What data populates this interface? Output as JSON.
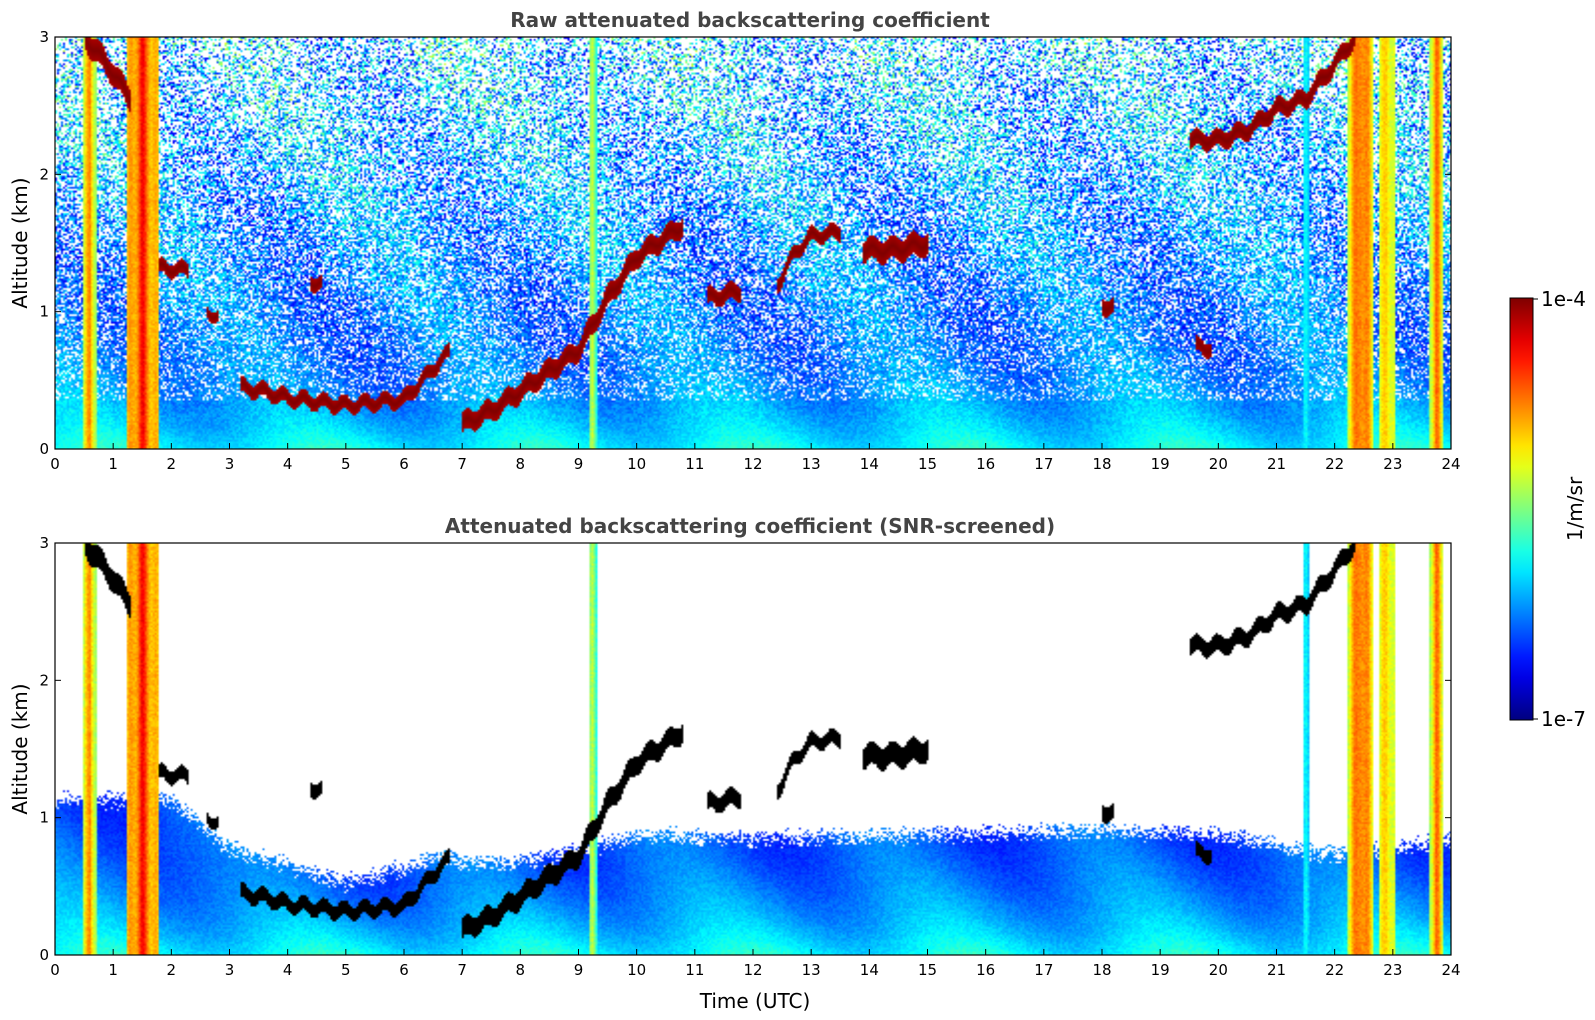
{
  "chart_data": [
    {
      "type": "heatmap",
      "title": "Raw attenuated backscattering coefficient",
      "xlabel": "",
      "ylabel": "Altitude (km)",
      "xlim": [
        0,
        24
      ],
      "ylim": [
        0,
        3
      ],
      "x_ticks": [
        "0",
        "1",
        "2",
        "3",
        "4",
        "5",
        "6",
        "7",
        "8",
        "9",
        "10",
        "11",
        "12",
        "13",
        "14",
        "15",
        "16",
        "17",
        "18",
        "19",
        "20",
        "21",
        "22",
        "23",
        "24"
      ],
      "y_ticks": [
        "0",
        "1",
        "2",
        "3"
      ],
      "screened": false
    },
    {
      "type": "heatmap",
      "title": "Attenuated backscattering coefficient (SNR-screened)",
      "xlabel": "Time (UTC)",
      "ylabel": "Altitude (km)",
      "xlim": [
        0,
        24
      ],
      "ylim": [
        0,
        3
      ],
      "x_ticks": [
        "0",
        "1",
        "2",
        "3",
        "4",
        "5",
        "6",
        "7",
        "8",
        "9",
        "10",
        "11",
        "12",
        "13",
        "14",
        "15",
        "16",
        "17",
        "18",
        "19",
        "20",
        "21",
        "22",
        "23",
        "24"
      ],
      "y_ticks": [
        "0",
        "1",
        "2",
        "3"
      ],
      "screened": true
    }
  ],
  "colorbar": {
    "label": "1/m/sr",
    "max_label": "1e-4",
    "min_label": "1e-7",
    "scale": "log",
    "colormap": "jet"
  },
  "features": {
    "precip_columns": [
      {
        "center": 0.6,
        "width": 0.25,
        "intensity": 0.72
      },
      {
        "center": 1.5,
        "width": 0.55,
        "intensity": 0.84
      },
      {
        "center": 9.25,
        "width": 0.12,
        "intensity": 0.6
      },
      {
        "center": 21.5,
        "width": 0.1,
        "intensity": 0.45
      },
      {
        "center": 22.45,
        "width": 0.45,
        "intensity": 0.8
      },
      {
        "center": 22.9,
        "width": 0.3,
        "intensity": 0.7
      },
      {
        "center": 23.75,
        "width": 0.25,
        "intensity": 0.75
      }
    ],
    "cloud_layers": [
      {
        "x": [
          0.5,
          0.9,
          1.3
        ],
        "alt": [
          3.0,
          2.8,
          2.55
        ],
        "thickness": 0.08
      },
      {
        "x": [
          1.8,
          2.3
        ],
        "alt": [
          1.32,
          1.3
        ],
        "thickness": 0.05
      },
      {
        "x": [
          3.2,
          3.6,
          4.0,
          5.0,
          6.0,
          6.8
        ],
        "alt": [
          0.45,
          0.42,
          0.37,
          0.32,
          0.36,
          0.72
        ],
        "thickness": 0.05
      },
      {
        "x": [
          7.0,
          7.5,
          8.2,
          9.0,
          9.5,
          10.0,
          10.8
        ],
        "alt": [
          0.18,
          0.28,
          0.48,
          0.72,
          1.1,
          1.4,
          1.63
        ],
        "thickness": 0.07
      },
      {
        "x": [
          11.2,
          11.8
        ],
        "alt": [
          1.1,
          1.15
        ],
        "thickness": 0.06
      },
      {
        "x": [
          12.4,
          12.7,
          13.0,
          13.5
        ],
        "alt": [
          1.18,
          1.42,
          1.55,
          1.58
        ],
        "thickness": 0.05
      },
      {
        "x": [
          13.9,
          14.4,
          15.0
        ],
        "alt": [
          1.45,
          1.45,
          1.5
        ],
        "thickness": 0.08
      },
      {
        "x": [
          19.5,
          20.0,
          20.5,
          21.0,
          21.5,
          22.0,
          22.35
        ],
        "alt": [
          2.25,
          2.25,
          2.32,
          2.48,
          2.55,
          2.8,
          3.0
        ],
        "thickness": 0.06
      },
      {
        "x": [
          18.0,
          18.2
        ],
        "alt": [
          1.05,
          1.03
        ],
        "thickness": 0.06
      },
      {
        "x": [
          19.6,
          19.9
        ],
        "alt": [
          0.75,
          0.73
        ],
        "thickness": 0.05
      },
      {
        "x": [
          4.4,
          4.6
        ],
        "alt": [
          1.22,
          1.2
        ],
        "thickness": 0.05
      },
      {
        "x": [
          2.6,
          2.8
        ],
        "alt": [
          1.0,
          0.97
        ],
        "thickness": 0.04
      }
    ]
  }
}
